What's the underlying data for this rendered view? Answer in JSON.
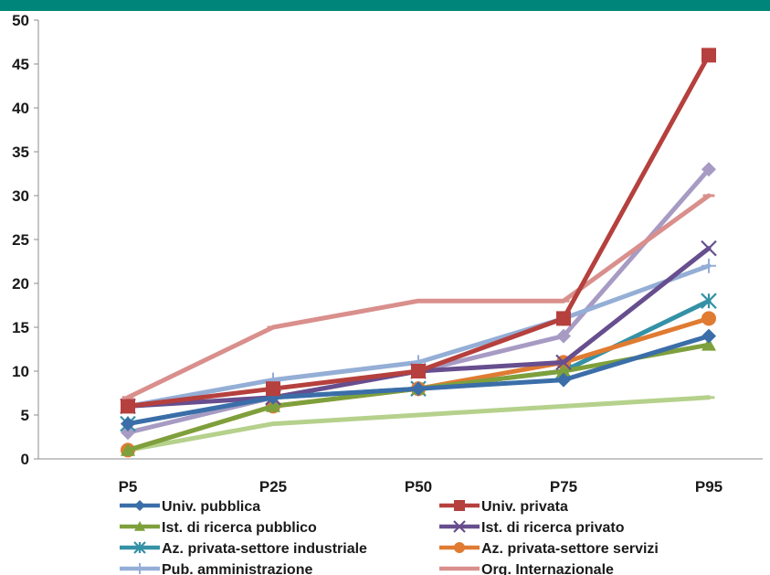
{
  "chart_data": {
    "type": "line",
    "title": "",
    "xlabel": "",
    "ylabel": "",
    "categories": [
      "P5",
      "P25",
      "P50",
      "P75",
      "P95"
    ],
    "ylim": [
      0,
      50
    ],
    "yticks": [
      0,
      5,
      10,
      15,
      20,
      25,
      30,
      35,
      40,
      45,
      50
    ],
    "grid": false,
    "legend_position": "bottom",
    "series": [
      {
        "name": "Univ. pubblica",
        "values": [
          4,
          7,
          8,
          9,
          14
        ],
        "color": "#3b6ea8",
        "marker": "diamond"
      },
      {
        "name": "Univ. privata",
        "values": [
          6,
          8,
          10,
          16,
          46
        ],
        "color": "#b5403d",
        "marker": "square"
      },
      {
        "name": "Ist. di ricerca pubblico",
        "values": [
          1,
          6,
          8,
          10,
          13
        ],
        "color": "#7ea03c",
        "marker": "triangle"
      },
      {
        "name": "Ist. di ricerca privato",
        "values": [
          6,
          7,
          10,
          11,
          24
        ],
        "color": "#674e8e",
        "marker": "x"
      },
      {
        "name": "Az. privata-settore industriale",
        "values": [
          4,
          7,
          8,
          10,
          18
        ],
        "color": "#3591a6",
        "marker": "star"
      },
      {
        "name": "Az. privata-settore servizi",
        "values": [
          1,
          6,
          8,
          11,
          16
        ],
        "color": "#e07b32",
        "marker": "circle"
      },
      {
        "name": "Pub. amministrazione",
        "values": [
          6,
          9,
          11,
          16,
          22
        ],
        "color": "#94aed6",
        "marker": "plus"
      },
      {
        "name": "Org. Internazionale",
        "values": [
          7,
          15,
          18,
          18,
          30
        ],
        "color": "#d98f8c",
        "marker": "dash"
      },
      {
        "name": "",
        "values": [
          3,
          7,
          10,
          14,
          33
        ],
        "color": "#a79bc4",
        "marker": "diamond"
      },
      {
        "name": "",
        "values": [
          1,
          4,
          5,
          6,
          7
        ],
        "color": "#b5d18c",
        "marker": "dash"
      }
    ]
  }
}
